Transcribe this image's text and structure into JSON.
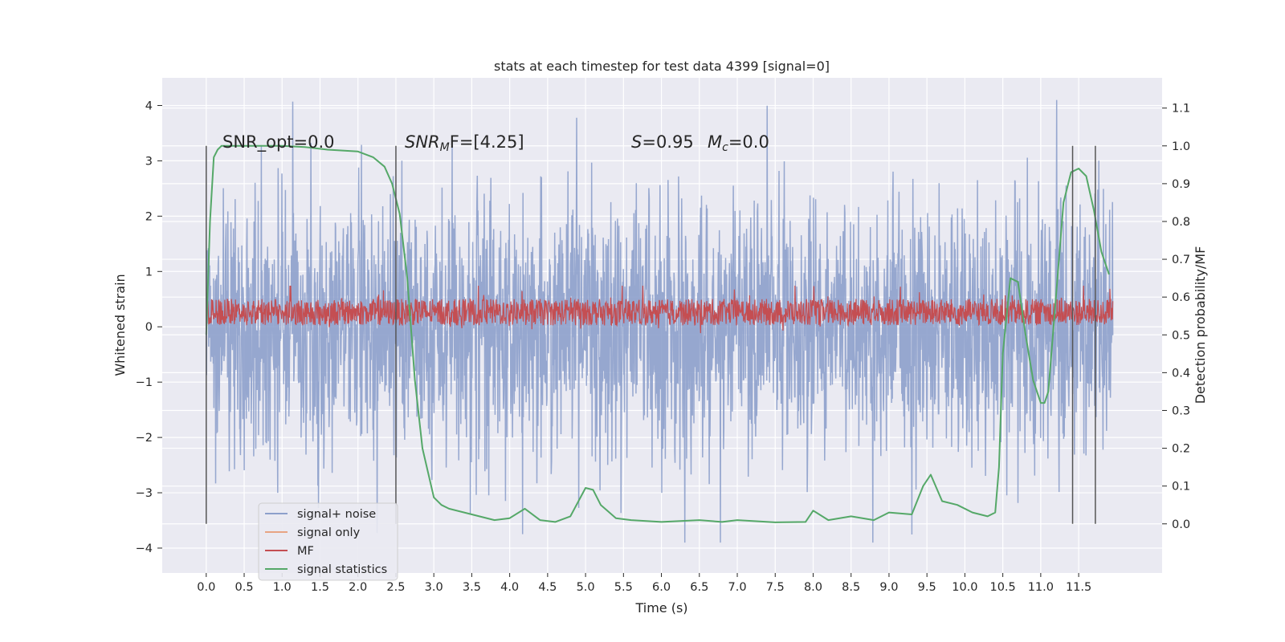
{
  "chart_data": {
    "type": "line",
    "title": "stats at each timestep for test data 4399 [signal=0]",
    "xlabel": "Time (s)",
    "ylabel": "Whitened strain",
    "y2label": "Detection probability/MF",
    "xlim": [
      -0.58,
      12.6
    ],
    "ylim": [
      -4.45,
      4.5
    ],
    "y2lim": [
      -0.13,
      1.18
    ],
    "xticks": [
      "0.0",
      "0.5",
      "1.0",
      "1.5",
      "2.0",
      "2.5",
      "3.0",
      "3.5",
      "4.0",
      "4.5",
      "5.0",
      "5.5",
      "6.0",
      "6.5",
      "7.0",
      "7.5",
      "8.0",
      "8.5",
      "9.0",
      "9.5",
      "10.0",
      "10.5",
      "11.0",
      "11.5"
    ],
    "yticks": [
      "4",
      "3",
      "2",
      "1",
      "0",
      "−1",
      "−2",
      "−3",
      "−4"
    ],
    "y2ticks": [
      "1.1",
      "1.0",
      "0.9",
      "0.8",
      "0.7",
      "0.6",
      "0.5",
      "0.4",
      "0.3",
      "0.2",
      "0.1",
      "0.0"
    ],
    "grid": true,
    "legend_position": "lower-left",
    "annotations": {
      "snr_opt": "SNR_opt=0.0",
      "snr_mf_main": "SNR",
      "snr_mf_sub": "M",
      "snr_mf_rest": "F=[4.25]",
      "s_main": "S",
      "s_rest": "=0.95",
      "mc_main": "M",
      "mc_sub": "c",
      "mc_rest": "=0.0"
    },
    "vlines_x": [
      0.0,
      2.5,
      11.42,
      11.72
    ],
    "series": [
      {
        "name": "signal+ noise",
        "color": "#8da0cb",
        "kind": "noise",
        "x_range": [
          0,
          11.95
        ],
        "envelope": [
          -3.9,
          4.1
        ]
      },
      {
        "name": "signal only",
        "color": "#e8a483",
        "kind": "flat"
      },
      {
        "name": "MF",
        "color": "#c44e52",
        "kind": "mf",
        "x_range": [
          0,
          11.95
        ],
        "y2_range": [
          0.5,
          0.63
        ]
      },
      {
        "name": "signal statistics",
        "color": "#55a868",
        "kind": "line",
        "x": [
          0.0,
          0.05,
          0.1,
          0.15,
          0.2,
          0.3,
          0.5,
          0.8,
          1.0,
          1.3,
          1.6,
          2.0,
          2.2,
          2.35,
          2.45,
          2.55,
          2.65,
          2.75,
          2.85,
          3.0,
          3.1,
          3.2,
          3.4,
          3.6,
          3.8,
          4.0,
          4.2,
          4.4,
          4.6,
          4.8,
          5.0,
          5.1,
          5.2,
          5.4,
          5.6,
          6.0,
          6.5,
          6.8,
          7.0,
          7.5,
          7.9,
          8.0,
          8.2,
          8.5,
          8.8,
          9.0,
          9.3,
          9.45,
          9.55,
          9.7,
          9.9,
          10.1,
          10.3,
          10.4,
          10.45,
          10.5,
          10.6,
          10.7,
          10.8,
          10.9,
          11.0,
          11.05,
          11.1,
          11.2,
          11.3,
          11.4,
          11.5,
          11.6,
          11.7,
          11.8,
          11.9
        ],
        "y": [
          0.5,
          0.8,
          0.97,
          0.99,
          1.0,
          1.0,
          1.0,
          1.0,
          1.0,
          0.997,
          0.99,
          0.985,
          0.97,
          0.945,
          0.9,
          0.82,
          0.65,
          0.38,
          0.2,
          0.07,
          0.05,
          0.04,
          0.03,
          0.02,
          0.01,
          0.015,
          0.04,
          0.01,
          0.005,
          0.02,
          0.095,
          0.09,
          0.05,
          0.015,
          0.01,
          0.005,
          0.01,
          0.005,
          0.01,
          0.004,
          0.005,
          0.035,
          0.01,
          0.02,
          0.01,
          0.03,
          0.025,
          0.1,
          0.13,
          0.06,
          0.05,
          0.03,
          0.02,
          0.03,
          0.15,
          0.45,
          0.65,
          0.64,
          0.5,
          0.38,
          0.32,
          0.32,
          0.35,
          0.6,
          0.85,
          0.93,
          0.94,
          0.92,
          0.83,
          0.72,
          0.66
        ]
      }
    ]
  }
}
